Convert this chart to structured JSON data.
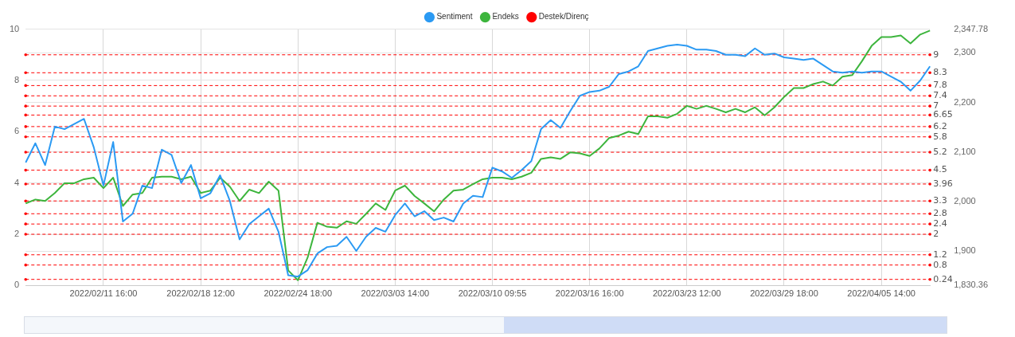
{
  "chart_data": {
    "type": "line",
    "categories": [
      null,
      null,
      null,
      null,
      null,
      null,
      null,
      null,
      "2022/02/11 16:00",
      null,
      null,
      null,
      null,
      null,
      null,
      null,
      null,
      null,
      "2022/02/18 12:00",
      null,
      null,
      null,
      null,
      null,
      null,
      null,
      null,
      null,
      "2022/02/24 18:00",
      null,
      null,
      null,
      null,
      null,
      null,
      null,
      null,
      null,
      "2022/03/03 14:00",
      null,
      null,
      null,
      null,
      null,
      null,
      null,
      null,
      null,
      "2022/03/10 09:55",
      null,
      null,
      null,
      null,
      null,
      null,
      null,
      null,
      null,
      "2022/03/16 16:00",
      null,
      null,
      null,
      null,
      null,
      null,
      null,
      null,
      null,
      "2022/03/23 12:00",
      null,
      null,
      null,
      null,
      null,
      null,
      null,
      null,
      null,
      "2022/03/29 18:00",
      null,
      null,
      null,
      null,
      null,
      null,
      null,
      null,
      null,
      "2022/04/05 14:00",
      null,
      null,
      null,
      null,
      null
    ],
    "series": [
      {
        "name": "Sentiment",
        "color": "#2b9af3",
        "values": [
          4.8,
          5.55,
          4.7,
          6.2,
          6.1,
          6.3,
          6.5,
          5.4,
          3.9,
          5.6,
          2.5,
          2.8,
          3.9,
          3.8,
          5.3,
          5.1,
          4.0,
          4.7,
          3.4,
          3.6,
          4.3,
          3.3,
          1.8,
          2.4,
          2.7,
          3.0,
          2.1,
          0.4,
          0.35,
          0.6,
          1.25,
          1.5,
          1.55,
          1.9,
          1.35,
          1.9,
          2.25,
          2.1,
          2.75,
          3.2,
          2.7,
          2.9,
          2.55,
          2.65,
          2.5,
          3.2,
          3.5,
          3.45,
          4.6,
          4.45,
          4.2,
          4.5,
          4.85,
          6.1,
          6.45,
          6.15,
          6.8,
          7.4,
          7.55,
          7.6,
          7.75,
          8.25,
          8.35,
          8.55,
          9.15,
          9.25,
          9.35,
          9.4,
          9.35,
          9.2,
          9.2,
          9.15,
          9.0,
          9.0,
          8.95,
          9.25,
          9.0,
          9.05,
          8.9,
          8.85,
          8.8,
          8.85,
          8.6,
          8.35,
          8.3,
          8.35,
          8.3,
          8.35,
          8.35,
          8.15,
          7.95,
          7.6,
          8.0,
          8.55
        ]
      },
      {
        "name": "Endeks",
        "color": "#3db53d",
        "axis": "y2",
        "values": [
          1996,
          2004,
          2001,
          2017,
          2037,
          2037,
          2045,
          2048,
          2027,
          2048,
          1991,
          2014,
          2017,
          2048,
          2050,
          2050,
          2045,
          2050,
          2017,
          2022,
          2048,
          2030,
          2001,
          2024,
          2017,
          2040,
          2022,
          1861,
          1841,
          1887,
          1957,
          1949,
          1947,
          1960,
          1955,
          1975,
          1996,
          1983,
          2022,
          2032,
          2011,
          1996,
          1980,
          2004,
          2022,
          2024,
          2035,
          2045,
          2048,
          2048,
          2045,
          2050,
          2058,
          2086,
          2089,
          2086,
          2099,
          2097,
          2092,
          2107,
          2128,
          2133,
          2141,
          2136,
          2172,
          2172,
          2169,
          2177,
          2193,
          2187,
          2193,
          2187,
          2180,
          2187,
          2180,
          2190,
          2174,
          2190,
          2211,
          2229,
          2229,
          2237,
          2242,
          2234,
          2252,
          2255,
          2283,
          2314,
          2332,
          2332,
          2335,
          2319,
          2337,
          2345
        ]
      },
      {
        "name": "Destek/Direnç",
        "color": "#ff0000",
        "values": [
          null,
          null,
          null,
          null,
          null,
          null,
          null,
          null,
          null,
          null,
          null,
          null,
          null,
          null,
          null,
          null,
          null,
          null,
          null,
          null,
          null,
          null,
          null,
          null,
          null,
          null,
          null,
          null,
          null,
          null,
          null,
          null,
          null,
          null,
          null,
          null,
          null,
          null,
          null,
          null,
          null,
          null,
          null,
          null,
          null,
          null,
          null,
          null,
          null,
          null,
          null,
          null,
          null,
          null,
          null,
          null,
          null,
          null,
          null,
          null,
          null,
          null,
          null,
          null,
          null,
          null,
          null,
          null,
          null,
          null,
          null,
          null,
          null,
          null,
          null,
          null,
          null,
          null,
          null,
          null,
          null,
          null,
          null,
          null,
          null,
          null,
          null,
          null,
          null,
          null,
          null,
          null,
          null,
          null
        ]
      }
    ],
    "ylim": [
      0,
      10
    ],
    "yticks": [
      0,
      2,
      4,
      6,
      8,
      10
    ],
    "y2lim": [
      1830.36,
      2347.78
    ],
    "y2ticks": [
      {
        "value": 1830.36,
        "label": "1,830.36"
      },
      {
        "value": 1900,
        "label": "1,900"
      },
      {
        "value": 2000,
        "label": "2,000"
      },
      {
        "value": 2100,
        "label": "2,100"
      },
      {
        "value": 2200,
        "label": "2,200"
      },
      {
        "value": 2300,
        "label": "2,300"
      },
      {
        "value": 2347.78,
        "label": "2,347.78"
      }
    ],
    "ref_lines": [
      {
        "axis": "y",
        "value": 9,
        "label": "9",
        "color": "#ff0000",
        "line_style": "dashed"
      },
      {
        "axis": "y",
        "value": 8.3,
        "label": "8.3",
        "color": "#ff0000",
        "line_style": "dashed"
      },
      {
        "axis": "y",
        "value": 7.8,
        "label": "7.8",
        "color": "#ff0000",
        "line_style": "dashed"
      },
      {
        "axis": "y",
        "value": 7.4,
        "label": "7.4",
        "color": "#ff0000",
        "line_style": "dashed"
      },
      {
        "axis": "y",
        "value": 7,
        "label": "7",
        "color": "#ff0000",
        "line_style": "dashed"
      },
      {
        "axis": "y",
        "value": 6.65,
        "label": "6.65",
        "color": "#ff0000",
        "line_style": "dashed"
      },
      {
        "axis": "y",
        "value": 6.2,
        "label": "6.2",
        "color": "#ff0000",
        "line_style": "dashed"
      },
      {
        "axis": "y",
        "value": 5.8,
        "label": "5.8",
        "color": "#ff0000",
        "line_style": "dashed"
      },
      {
        "axis": "y",
        "value": 5.2,
        "label": "5.2",
        "color": "#ff0000",
        "line_style": "dashed"
      },
      {
        "axis": "y",
        "value": 4.5,
        "label": "4.5",
        "color": "#ff0000",
        "line_style": "dashed"
      },
      {
        "axis": "y",
        "value": 3.96,
        "label": "3.96",
        "color": "#ff0000",
        "line_style": "dashed"
      },
      {
        "axis": "y",
        "value": 3.3,
        "label": "3.3",
        "color": "#ff0000",
        "line_style": "dashed"
      },
      {
        "axis": "y",
        "value": 2.8,
        "label": "2.8",
        "color": "#ff0000",
        "line_style": "dashed"
      },
      {
        "axis": "y",
        "value": 2.4,
        "label": "2.4",
        "color": "#ff0000",
        "line_style": "dashed"
      },
      {
        "axis": "y",
        "value": 2,
        "label": "2",
        "color": "#ff0000",
        "line_style": "dashed"
      },
      {
        "axis": "y",
        "value": 1.2,
        "label": "1.2",
        "color": "#ff0000",
        "line_style": "dashed"
      },
      {
        "axis": "y",
        "value": 0.8,
        "label": "0.8",
        "color": "#ff0000",
        "line_style": "dashed"
      },
      {
        "axis": "y",
        "value": 0.24,
        "label": "0.24",
        "color": "#ff0000",
        "line_style": "dashed"
      }
    ],
    "grid": true,
    "legend": "top",
    "marker": "none",
    "line_style": "solid"
  }
}
